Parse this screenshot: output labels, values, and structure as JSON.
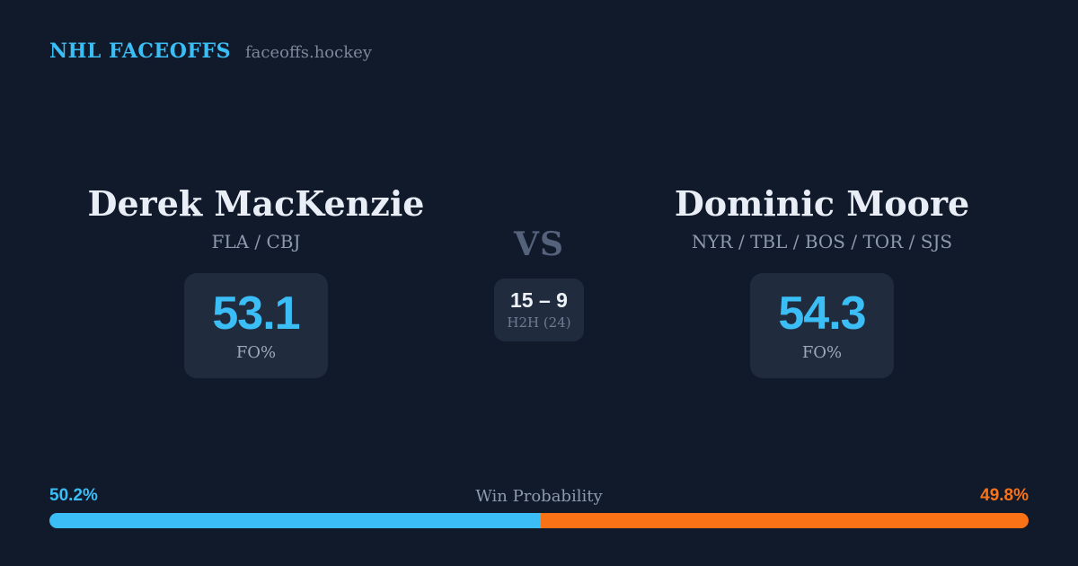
{
  "meta": {
    "background": "#111a2b",
    "card_background": "#202b3e",
    "accent_blue": "#3bbdf5",
    "accent_orange": "#f97316"
  },
  "header": {
    "brand": "NHL FACEOFFS",
    "tagline": "faceoffs.hockey"
  },
  "matchup": {
    "vs_label": "VS",
    "h2h": {
      "score": "15 – 9",
      "label": "H2H (24)"
    },
    "players": [
      {
        "name": "Derek MacKenzie",
        "teams": "FLA / CBJ",
        "fo_pct": "53.1",
        "fo_label": "FO%"
      },
      {
        "name": "Dominic Moore",
        "teams": "NYR / TBL / BOS / TOR / SJS",
        "fo_pct": "54.3",
        "fo_label": "FO%"
      }
    ]
  },
  "win_probability": {
    "title": "Win Probability",
    "left_pct_label": "50.2%",
    "right_pct_label": "49.8%",
    "left_value": 50.2,
    "right_value": 49.8
  }
}
